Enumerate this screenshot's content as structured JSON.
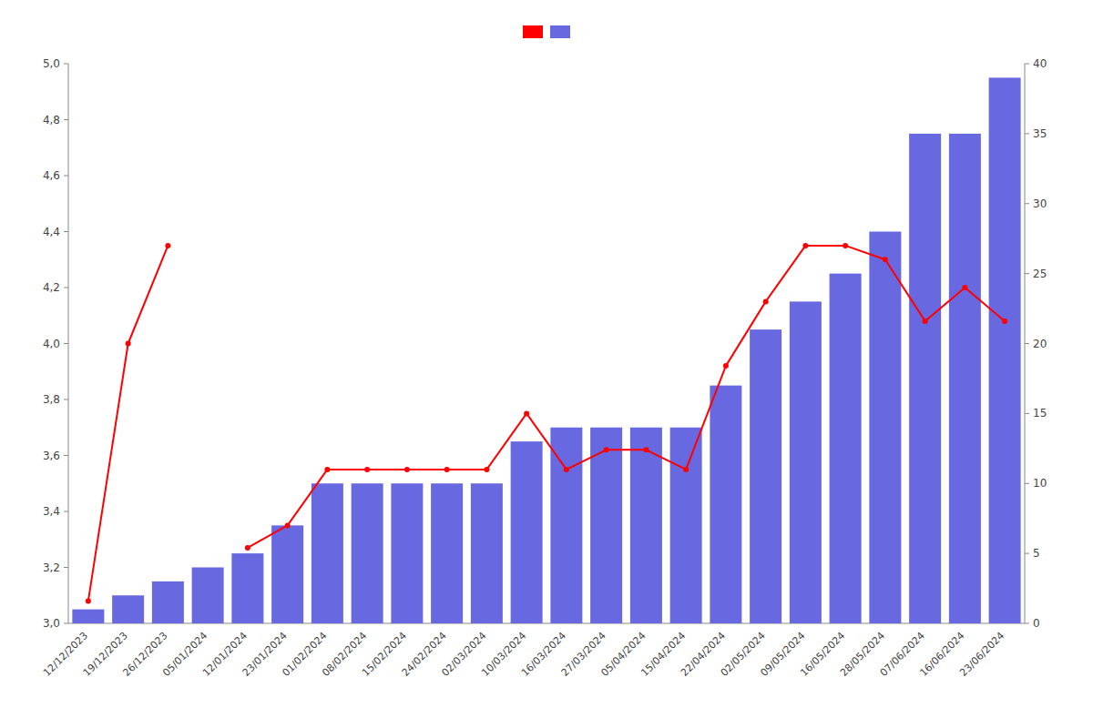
{
  "chart_data": {
    "type": "bar",
    "categories": [
      "12/12/2023",
      "19/12/2023",
      "26/12/2023",
      "05/01/2024",
      "12/01/2024",
      "23/01/2024",
      "01/02/2024",
      "08/02/2024",
      "15/02/2024",
      "24/02/2024",
      "02/03/2024",
      "10/03/2024",
      "16/03/2024",
      "27/03/2024",
      "05/04/2024",
      "15/04/2024",
      "22/04/2024",
      "02/05/2024",
      "09/05/2024",
      "16/05/2024",
      "28/05/2024",
      "07/06/2024",
      "16/06/2024",
      "23/06/2024"
    ],
    "series": [
      {
        "type": "line",
        "color": "#ff0000",
        "marker": "circle",
        "values": [
          3.08,
          4.0,
          4.35,
          null,
          3.27,
          3.35,
          3.55,
          3.55,
          3.55,
          3.55,
          3.55,
          3.75,
          3.55,
          3.62,
          3.62,
          3.55,
          3.92,
          4.15,
          4.35,
          4.35,
          4.3,
          4.08,
          4.2,
          4.08
        ]
      },
      {
        "type": "bar",
        "color": "#6868e0",
        "axis": "y2",
        "values": [
          1,
          2,
          3,
          4,
          5,
          7,
          10,
          10,
          10,
          10,
          10,
          13,
          14,
          14,
          14,
          14,
          17,
          21,
          23,
          25,
          28,
          35,
          35,
          39
        ]
      }
    ],
    "ylim": [
      3.0,
      5.0
    ],
    "yticks": [
      {
        "value": 3.0,
        "label": "3,0"
      },
      {
        "value": 3.2,
        "label": "3,2"
      },
      {
        "value": 3.4,
        "label": "3,4"
      },
      {
        "value": 3.6,
        "label": "3,6"
      },
      {
        "value": 3.8,
        "label": "3,8"
      },
      {
        "value": 4.0,
        "label": "4,0"
      },
      {
        "value": 4.2,
        "label": "4,2"
      },
      {
        "value": 4.4,
        "label": "4,4"
      },
      {
        "value": 4.6,
        "label": "4,6"
      },
      {
        "value": 4.8,
        "label": "4,8"
      },
      {
        "value": 5.0,
        "label": "5,0"
      }
    ],
    "y2lim": [
      0,
      40
    ],
    "y2ticks": [
      0,
      5,
      10,
      15,
      20,
      25,
      30,
      35,
      40
    ],
    "grid": false,
    "legend": "top"
  }
}
